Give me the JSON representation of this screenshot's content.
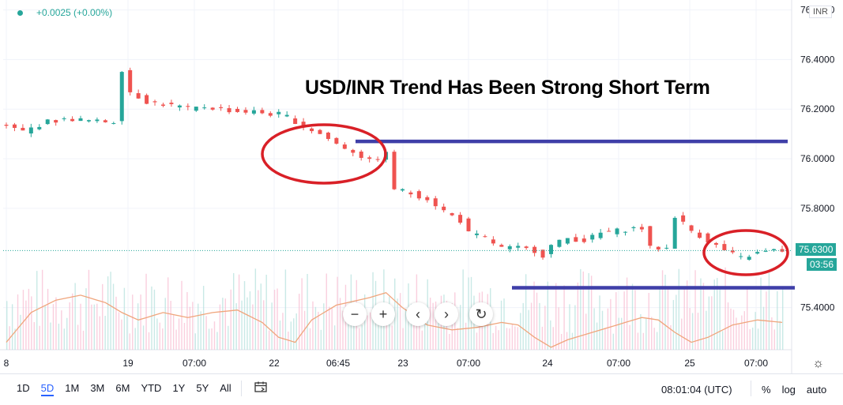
{
  "legend": {
    "change": "+0.0025 (+0.00%)"
  },
  "annotation": "USD/INR Trend Has Been Strong Short Term",
  "currency": "INR",
  "last_price": {
    "value": "75.6300",
    "countdown": "03:56",
    "color": "#26a69a"
  },
  "range_buttons": [
    "1D",
    "5D",
    "1M",
    "3M",
    "6M",
    "YTD",
    "1Y",
    "5Y",
    "All"
  ],
  "active_range": "5D",
  "clock": "08:01:04 (UTC)",
  "scale_options": [
    "%",
    "log",
    "auto"
  ],
  "controls": {
    "zoom_out": "−",
    "zoom_in": "+",
    "back": "‹",
    "forward": "›",
    "reset": "↻"
  },
  "colors": {
    "up": "#26a69a",
    "down": "#ef5350",
    "ma": "#f0a57c",
    "overlay_line": "#3f3fa8",
    "overlay_circle": "#d92027"
  },
  "chart_data": {
    "type": "candlestick",
    "symbol": "USD/INR",
    "y_ticks": [
      "76.6000",
      "76.4000",
      "76.2000",
      "76.0000",
      "75.8000",
      "75.6300",
      "75.4000"
    ],
    "y_range": [
      75.23,
      76.64
    ],
    "x_ticks": [
      "8",
      "19",
      "07:00",
      "22",
      "06:45",
      "23",
      "07:00",
      "24",
      "07:00",
      "25",
      "07:00"
    ],
    "price_path": [
      [
        0,
        76.14
      ],
      [
        3,
        76.11
      ],
      [
        6,
        76.15
      ],
      [
        9,
        76.16
      ],
      [
        12,
        76.15
      ],
      [
        14,
        76.15
      ],
      [
        15,
        76.36
      ],
      [
        16,
        76.27
      ],
      [
        18,
        76.23
      ],
      [
        20,
        76.22
      ],
      [
        22,
        76.21
      ],
      [
        23,
        76.2
      ],
      [
        25,
        76.21
      ],
      [
        27,
        76.2
      ],
      [
        29,
        76.19
      ],
      [
        31,
        76.19
      ],
      [
        33,
        76.18
      ],
      [
        34,
        76.18
      ],
      [
        35,
        76.17
      ],
      [
        37,
        76.13
      ],
      [
        39,
        76.1
      ],
      [
        41,
        76.06
      ],
      [
        43,
        76.03
      ],
      [
        45,
        75.99
      ],
      [
        47,
        76.02
      ],
      [
        48,
        75.88
      ],
      [
        50,
        75.86
      ],
      [
        52,
        75.84
      ],
      [
        54,
        75.79
      ],
      [
        56,
        75.75
      ],
      [
        57,
        75.7
      ],
      [
        59,
        75.68
      ],
      [
        60,
        75.66
      ],
      [
        61,
        75.64
      ],
      [
        63,
        75.64
      ],
      [
        65,
        75.63
      ],
      [
        66,
        75.61
      ],
      [
        67,
        75.65
      ],
      [
        69,
        75.68
      ],
      [
        71,
        75.67
      ],
      [
        73,
        75.7
      ],
      [
        75,
        75.71
      ],
      [
        77,
        75.72
      ],
      [
        78,
        75.72
      ],
      [
        79,
        75.64
      ],
      [
        81,
        75.64
      ],
      [
        82,
        75.77
      ],
      [
        84,
        75.71
      ],
      [
        86,
        75.67
      ],
      [
        88,
        75.63
      ],
      [
        90,
        75.6
      ],
      [
        92,
        75.62
      ],
      [
        94,
        75.63
      ]
    ],
    "moving_average": [
      [
        0,
        75.26
      ],
      [
        3,
        75.38
      ],
      [
        6,
        75.43
      ],
      [
        9,
        75.45
      ],
      [
        12,
        75.42
      ],
      [
        14,
        75.38
      ],
      [
        16,
        75.35
      ],
      [
        19,
        75.38
      ],
      [
        22,
        75.36
      ],
      [
        25,
        75.38
      ],
      [
        28,
        75.39
      ],
      [
        31,
        75.34
      ],
      [
        33,
        75.28
      ],
      [
        35,
        75.26
      ],
      [
        37,
        75.35
      ],
      [
        40,
        75.41
      ],
      [
        44,
        75.44
      ],
      [
        46,
        75.46
      ],
      [
        48,
        75.4
      ],
      [
        51,
        75.33
      ],
      [
        54,
        75.31
      ],
      [
        57,
        75.32
      ],
      [
        60,
        75.34
      ],
      [
        62,
        75.33
      ],
      [
        64,
        75.28
      ],
      [
        66,
        75.24
      ],
      [
        68,
        75.27
      ],
      [
        71,
        75.3
      ],
      [
        74,
        75.33
      ],
      [
        77,
        75.36
      ],
      [
        79,
        75.35
      ],
      [
        81,
        75.3
      ],
      [
        83,
        75.26
      ],
      [
        85,
        75.28
      ],
      [
        88,
        75.33
      ],
      [
        91,
        75.35
      ],
      [
        94,
        75.34
      ]
    ],
    "overlays": {
      "resistance": 76.07,
      "support": 75.48
    }
  }
}
